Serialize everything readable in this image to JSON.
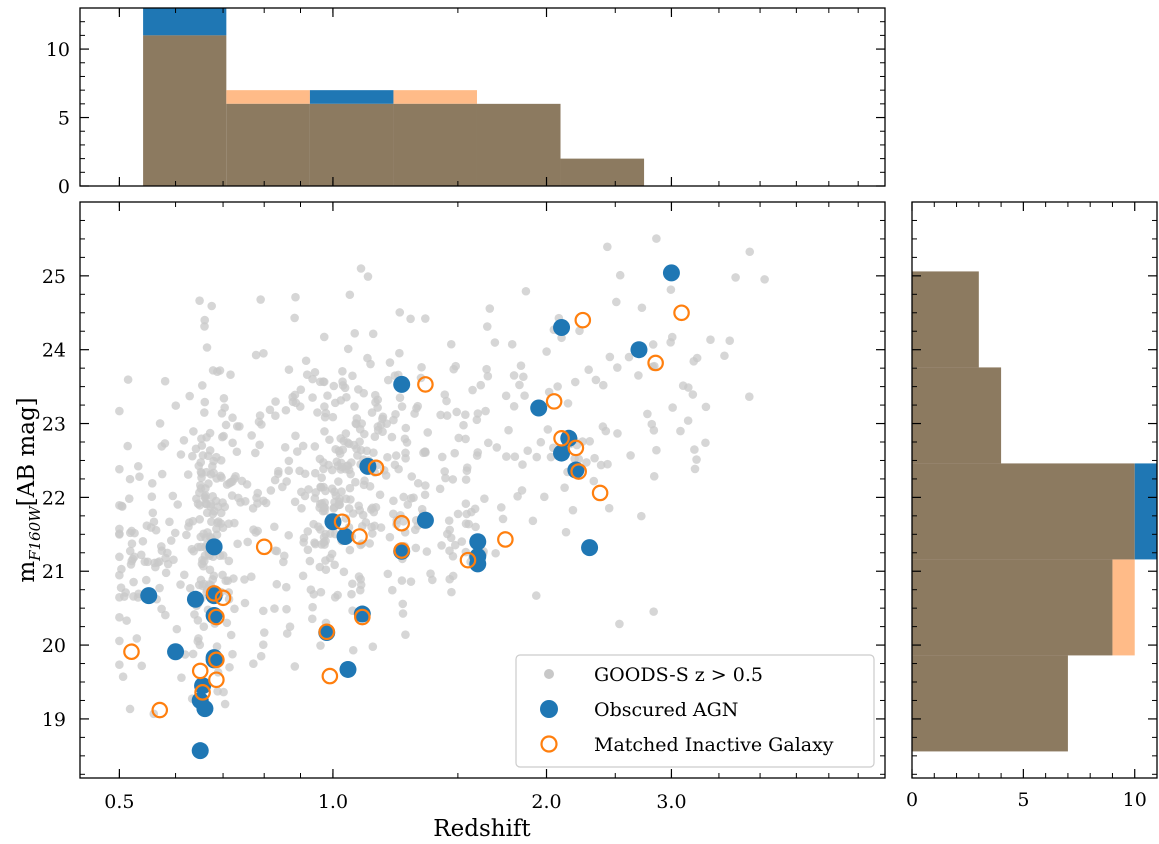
{
  "chart_data": {
    "type": "scatter",
    "title": "",
    "xlabel": "Redshift",
    "ylabel_main": "m",
    "ylabel_sub": "F160W",
    "ylabel_unit": "[AB mag]",
    "x_scale": "log",
    "xlim": [
      0.44,
      6.0
    ],
    "ylim": [
      18.2,
      26.0
    ],
    "x_ticks": [
      0.5,
      1.0,
      2.0,
      3.0
    ],
    "x_tick_labels": [
      "0.5",
      "1.0",
      "2.0",
      "3.0"
    ],
    "y_ticks": [
      19,
      20,
      21,
      22,
      23,
      24,
      25
    ],
    "y_tick_labels": [
      "19",
      "20",
      "21",
      "22",
      "23",
      "24",
      "25"
    ],
    "legend_position": "lower-right",
    "legend": [
      {
        "label": "GOODS-S z > 0.5",
        "marker": "gray-dot"
      },
      {
        "label": "Obscured AGN",
        "marker": "filled-blue-circle"
      },
      {
        "label": "Matched Inactive Galaxy",
        "marker": "open-orange-circle"
      }
    ],
    "colors": {
      "agn": "#1f77b4",
      "inactive_edge": "#ff7f0e",
      "background_points": "#c8c8c8",
      "hist_inactive": "#ffbb88",
      "hist_overlap": "#8c7a60"
    },
    "series": [
      {
        "name": "Obscured AGN",
        "points": [
          [
            0.55,
            20.67
          ],
          [
            0.6,
            19.91
          ],
          [
            0.64,
            20.62
          ],
          [
            0.65,
            18.57
          ],
          [
            0.65,
            19.25
          ],
          [
            0.655,
            19.45
          ],
          [
            0.66,
            19.14
          ],
          [
            0.68,
            21.33
          ],
          [
            0.68,
            20.67
          ],
          [
            0.68,
            20.4
          ],
          [
            0.68,
            19.83
          ],
          [
            0.68,
            19.8
          ],
          [
            0.98,
            20.17
          ],
          [
            1.0,
            21.67
          ],
          [
            1.04,
            21.47
          ],
          [
            1.05,
            19.67
          ],
          [
            1.1,
            20.42
          ],
          [
            1.12,
            22.42
          ],
          [
            1.25,
            23.53
          ],
          [
            1.25,
            21.27
          ],
          [
            1.35,
            21.69
          ],
          [
            1.6,
            21.4
          ],
          [
            1.6,
            21.2
          ],
          [
            1.6,
            21.1
          ],
          [
            1.95,
            23.21
          ],
          [
            2.1,
            24.3
          ],
          [
            2.1,
            22.6
          ],
          [
            2.15,
            22.8
          ],
          [
            2.2,
            22.37
          ],
          [
            2.3,
            21.32
          ],
          [
            2.7,
            24.0
          ],
          [
            3.0,
            25.04
          ]
        ]
      },
      {
        "name": "Matched Inactive Galaxy",
        "points": [
          [
            0.52,
            19.91
          ],
          [
            0.57,
            19.12
          ],
          [
            0.65,
            19.65
          ],
          [
            0.655,
            19.36
          ],
          [
            0.68,
            20.7
          ],
          [
            0.685,
            20.38
          ],
          [
            0.685,
            19.8
          ],
          [
            0.685,
            19.53
          ],
          [
            0.7,
            20.64
          ],
          [
            0.8,
            21.33
          ],
          [
            0.98,
            20.18
          ],
          [
            0.99,
            19.58
          ],
          [
            1.03,
            21.67
          ],
          [
            1.09,
            21.47
          ],
          [
            1.1,
            20.38
          ],
          [
            1.15,
            22.4
          ],
          [
            1.25,
            21.65
          ],
          [
            1.25,
            21.28
          ],
          [
            1.35,
            23.53
          ],
          [
            1.55,
            21.15
          ],
          [
            1.75,
            21.43
          ],
          [
            2.05,
            23.3
          ],
          [
            2.1,
            22.8
          ],
          [
            2.2,
            22.67
          ],
          [
            2.22,
            22.35
          ],
          [
            2.25,
            24.4
          ],
          [
            2.38,
            22.06
          ],
          [
            2.85,
            23.82
          ],
          [
            3.1,
            24.5
          ]
        ]
      }
    ],
    "top_histogram": {
      "xlabel": "",
      "ylim": [
        0,
        13
      ],
      "y_ticks": [
        0,
        5,
        10
      ],
      "y_tick_labels": [
        "0",
        "5",
        "10"
      ],
      "bin_edges": [
        0.54,
        0.7075,
        0.928,
        1.217,
        1.596,
        2.093,
        2.745
      ],
      "agn_counts": [
        13,
        6,
        7,
        6,
        6,
        2
      ],
      "inactive_counts": [
        11,
        7,
        6,
        7,
        6,
        2
      ]
    },
    "right_histogram": {
      "xlim": [
        0,
        11
      ],
      "x_ticks": [
        0,
        5,
        10
      ],
      "x_tick_labels": [
        "0",
        "5",
        "10"
      ],
      "bin_edges": [
        18.56,
        19.86,
        21.16,
        22.46,
        23.76,
        25.06
      ],
      "agn_counts": [
        7,
        9,
        11,
        4,
        3
      ],
      "inactive_counts": [
        7,
        10,
        10,
        4,
        3
      ]
    }
  }
}
